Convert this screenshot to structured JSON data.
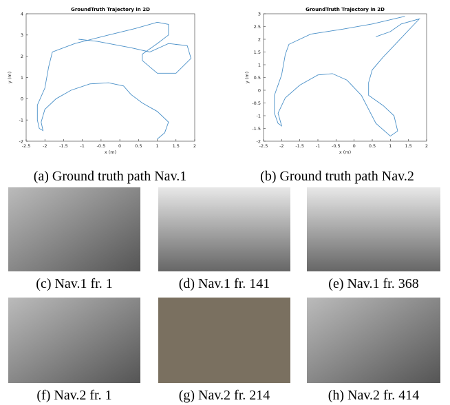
{
  "chart_data": [
    {
      "type": "line",
      "title": "GroundTruth Trajectory in 2D",
      "xlabel": "x (m)",
      "ylabel": "y (m)",
      "xlim": [
        -2.5,
        2
      ],
      "ylim": [
        -2,
        4
      ],
      "xticks": [
        -2.5,
        -2,
        -1.5,
        -1,
        -0.5,
        0,
        0.5,
        1,
        1.5,
        2
      ],
      "yticks": [
        -2,
        -1,
        0,
        1,
        2,
        3,
        4
      ],
      "color": "#4a90c8",
      "x": [
        1.0,
        1.2,
        1.3,
        1.0,
        0.6,
        0.3,
        0.1,
        -0.3,
        -0.8,
        -1.3,
        -1.7,
        -2.0,
        -2.1,
        -2.05,
        -2.15,
        -2.2,
        -2.2,
        -2.0,
        -1.9,
        -1.8,
        -1.2,
        -0.3,
        0.4,
        1.0,
        1.3,
        1.3,
        1.0,
        0.6,
        0.6,
        1.0,
        1.5,
        1.9,
        1.8,
        1.3,
        0.8,
        0.3,
        -0.6,
        -1.1
      ],
      "values": [
        -1.9,
        -1.6,
        -1.1,
        -0.6,
        -0.2,
        0.2,
        0.6,
        0.75,
        0.7,
        0.4,
        0.0,
        -0.5,
        -1.1,
        -1.5,
        -1.4,
        -1.0,
        -0.3,
        0.5,
        1.5,
        2.2,
        2.6,
        3.0,
        3.3,
        3.6,
        3.5,
        3.0,
        2.6,
        2.1,
        1.8,
        1.2,
        1.2,
        1.9,
        2.5,
        2.6,
        2.2,
        2.4,
        2.7,
        2.8
      ]
    },
    {
      "type": "line",
      "title": "GroundTruth Trajectory in 2D",
      "xlabel": "x (m)",
      "ylabel": "y (m)",
      "xlim": [
        -2.5,
        2
      ],
      "ylim": [
        -2,
        3
      ],
      "xticks": [
        -2.5,
        -2,
        -1.5,
        -1,
        -0.5,
        0,
        0.5,
        1,
        1.5,
        2
      ],
      "yticks": [
        -2,
        -1.5,
        -1,
        -0.5,
        0,
        0.5,
        1,
        1.5,
        2,
        2.5,
        3
      ],
      "color": "#4a90c8",
      "x": [
        0.6,
        1.0,
        1.3,
        1.8,
        1.6,
        1.2,
        0.8,
        0.5,
        0.4,
        0.4,
        0.8,
        1.1,
        1.2,
        1.0,
        0.6,
        0.2,
        -0.2,
        -0.6,
        -1.0,
        -1.5,
        -1.9,
        -2.1,
        -2.0,
        -2.1,
        -2.2,
        -2.2,
        -2.0,
        -1.9,
        -1.8,
        -1.2,
        -0.3,
        0.5,
        1.4
      ],
      "values": [
        2.1,
        2.3,
        2.6,
        2.8,
        2.5,
        1.9,
        1.3,
        0.8,
        0.3,
        -0.2,
        -0.6,
        -1.0,
        -1.6,
        -1.8,
        -1.3,
        -0.2,
        0.4,
        0.65,
        0.6,
        0.2,
        -0.3,
        -0.9,
        -1.4,
        -1.3,
        -0.9,
        -0.2,
        0.6,
        1.4,
        1.8,
        2.2,
        2.4,
        2.6,
        2.9
      ]
    }
  ],
  "captions": [
    "(a) Ground truth path Nav.1",
    "(b) Ground truth path Nav.2",
    "(c) Nav.1 fr. 1",
    "(d) Nav.1 fr. 141",
    "(e) Nav.1 fr. 368",
    "(f) Nav.2 fr. 1",
    "(g) Nav.2 fr. 214",
    "(h) Nav.2 fr. 414"
  ]
}
